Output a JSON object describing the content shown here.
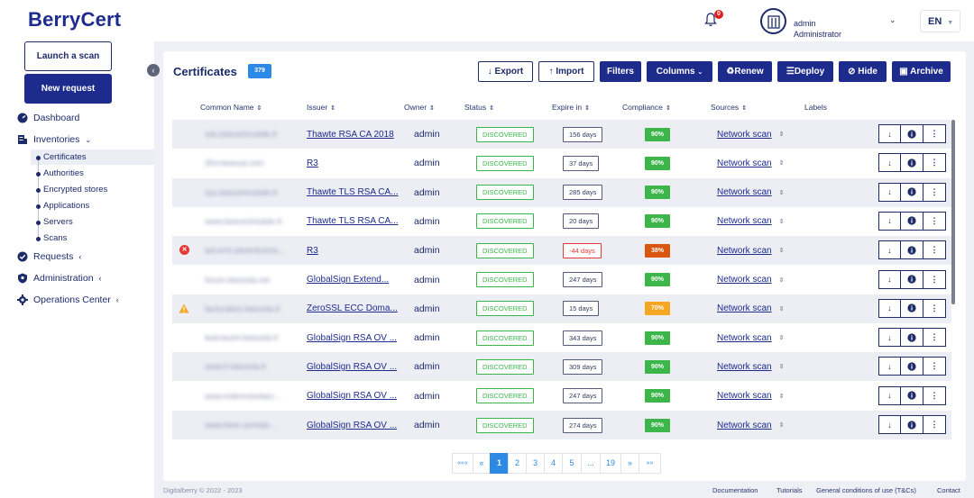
{
  "app": {
    "logo": "BerryCert"
  },
  "header": {
    "notifications_count": "0",
    "user_name": "admin",
    "user_role": "Administrator",
    "language": "EN"
  },
  "sidebar": {
    "launch_scan": "Launch a scan",
    "new_request": "New request",
    "nav": {
      "dashboard": "Dashboard",
      "inventories": "Inventories",
      "requests": "Requests",
      "administration": "Administration",
      "operations": "Operations Center"
    },
    "inventory_items": [
      "Certificates",
      "Authorities",
      "Encrypted stores",
      "Applications",
      "Servers",
      "Scans"
    ]
  },
  "main": {
    "title": "Certificates",
    "count": "379",
    "toolbar": {
      "export": "Export",
      "import": "Import",
      "filters": "Filters",
      "columns": "Columns",
      "renew": "Renew",
      "deploy": "Deploy",
      "hide": "Hide",
      "archive": "Archive"
    },
    "columns": {
      "common_name": "Common Name",
      "issuer": "Issuer",
      "owner": "Owner",
      "status": "Status",
      "expire": "Expire in",
      "compliance": "Compliance",
      "sources": "Sources",
      "labels": "Labels"
    },
    "rows": [
      {
        "common_name": "ssk.beecertmobile.fr",
        "issuer": "Thawte RSA CA 2018",
        "owner": "admin",
        "status": "DISCOVERED",
        "expire": "156 days",
        "compliance": "90%",
        "source": "Network scan",
        "flag": ""
      },
      {
        "common_name": "2fornewsua.com",
        "issuer": "R3",
        "owner": "admin",
        "status": "DISCOVERED",
        "expire": "37 days",
        "compliance": "90%",
        "source": "Network scan",
        "flag": ""
      },
      {
        "common_name": "sso.beecertmobile.fr",
        "issuer": "Thawte TLS RSA CA...",
        "owner": "admin",
        "status": "DISCOVERED",
        "expire": "285 days",
        "compliance": "90%",
        "source": "Network scan",
        "flag": ""
      },
      {
        "common_name": "www.beecertmobile.fr",
        "issuer": "Thawte TLS RSA CA...",
        "owner": "admin",
        "status": "DISCOVERED",
        "expire": "20 days",
        "compliance": "90%",
        "source": "Network scan",
        "flag": ""
      },
      {
        "common_name": "aol.ernt.adventuress...",
        "issuer": "R3",
        "owner": "admin",
        "status": "DISCOVERED",
        "expire": "-44 days",
        "compliance": "38%",
        "source": "Network scan",
        "flag": "error"
      },
      {
        "common_name": "forum.beesola.net",
        "issuer": "GlobalSign Extend...",
        "owner": "admin",
        "status": "DISCOVERED",
        "expire": "247 days",
        "compliance": "90%",
        "source": "Network scan",
        "flag": ""
      },
      {
        "common_name": "facturation.beesola.fr",
        "issuer": "ZeroSSL ECC Doma...",
        "owner": "admin",
        "status": "DISCOVERED",
        "expire": "15 days",
        "compliance": "70%",
        "source": "Network scan",
        "flag": "warning"
      },
      {
        "common_name": "learnexert.beesola.fr",
        "issuer": "GlobalSign RSA OV ...",
        "owner": "admin",
        "status": "DISCOVERED",
        "expire": "343 days",
        "compliance": "90%",
        "source": "Network scan",
        "flag": ""
      },
      {
        "common_name": "www.fr.beesola.fr",
        "issuer": "GlobalSign RSA OV ...",
        "owner": "admin",
        "status": "DISCOVERED",
        "expire": "309 days",
        "compliance": "90%",
        "source": "Network scan",
        "flag": ""
      },
      {
        "common_name": "www.indemniselarc...",
        "issuer": "GlobalSign RSA OV ...",
        "owner": "admin",
        "status": "DISCOVERED",
        "expire": "247 days",
        "compliance": "90%",
        "source": "Network scan",
        "flag": ""
      },
      {
        "common_name": "www.beer.cerrelar...",
        "issuer": "GlobalSign RSA OV ...",
        "owner": "admin",
        "status": "DISCOVERED",
        "expire": "274 days",
        "compliance": "90%",
        "source": "Network scan",
        "flag": ""
      }
    ],
    "pagination": [
      "«««",
      "«",
      "1",
      "2",
      "3",
      "4",
      "5",
      "...",
      "19",
      "»",
      "»»"
    ]
  },
  "colors": {
    "brand": "#1d2b8c",
    "accent_blue": "#2c8ae6",
    "status_green": "#39b54a",
    "compliance_good": "#3cb54a",
    "compliance_bad": "#d9560f",
    "compliance_mid": "#f5a623",
    "error_red": "#e53935"
  },
  "footer": {
    "copyright": "Digitalberry © 2022 - 2023",
    "documentation": "Documentation",
    "tutorials": "Tutorials",
    "tcs": "General conditions of use (T&Cs)",
    "contact": "Contact"
  }
}
